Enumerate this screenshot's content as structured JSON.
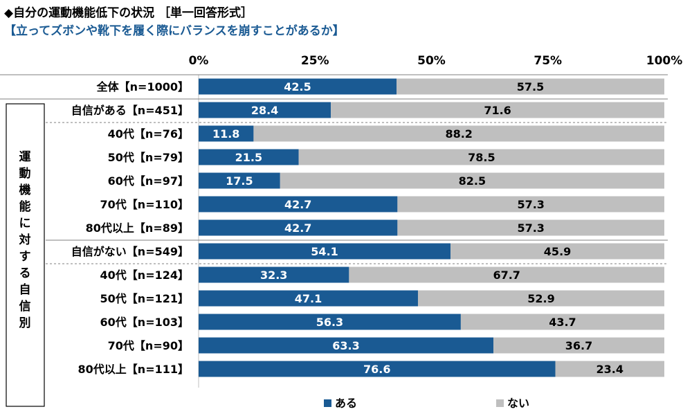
{
  "header": {
    "title": "◆自分の運動機能低下の状況 ［単一回答形式］",
    "subtitle": "【立ってズボンや靴下を履く際にバランスを崩すことがあるか】"
  },
  "colors": {
    "aru": "#1a5a93",
    "nai": "#bfbfbf"
  },
  "chart_data": {
    "type": "bar",
    "orientation": "horizontal",
    "stacked": true,
    "xlim": [
      0,
      100
    ],
    "x_ticks": [
      "0%",
      "25%",
      "50%",
      "75%",
      "100%"
    ],
    "group_label": "運動機能に対する自信別",
    "categories": [
      "全体【n=1000】",
      "自信がある【n=451】",
      "40代【n=76】",
      "50代【n=79】",
      "60代【n=97】",
      "70代【n=110】",
      "80代以上【n=89】",
      "自信がない【n=549】",
      "40代【n=124】",
      "50代【n=121】",
      "60代【n=103】",
      "70代【n=90】",
      "80代以上【n=111】"
    ],
    "series": [
      {
        "name": "ある",
        "values": [
          42.5,
          28.4,
          11.8,
          21.5,
          17.5,
          42.7,
          42.7,
          54.1,
          32.3,
          47.1,
          56.3,
          63.3,
          76.6
        ],
        "labels": [
          "42.5",
          "28.4",
          "11.8",
          "21.5",
          "17.5",
          "42.7",
          "42.7",
          "54.1",
          "32.3",
          "47.1",
          "56.3",
          "63.3",
          "76.6"
        ]
      },
      {
        "name": "ない",
        "values": [
          57.5,
          71.6,
          88.2,
          78.5,
          82.5,
          57.3,
          57.3,
          45.9,
          67.7,
          52.9,
          43.7,
          36.7,
          23.4
        ],
        "labels": [
          "57.5",
          "71.6",
          "88.2",
          "78.5",
          "82.5",
          "57.3",
          "57.3",
          "45.9",
          "67.7",
          "52.9",
          "43.7",
          "36.7",
          "23.4"
        ]
      }
    ],
    "legend_position": "bottom"
  }
}
